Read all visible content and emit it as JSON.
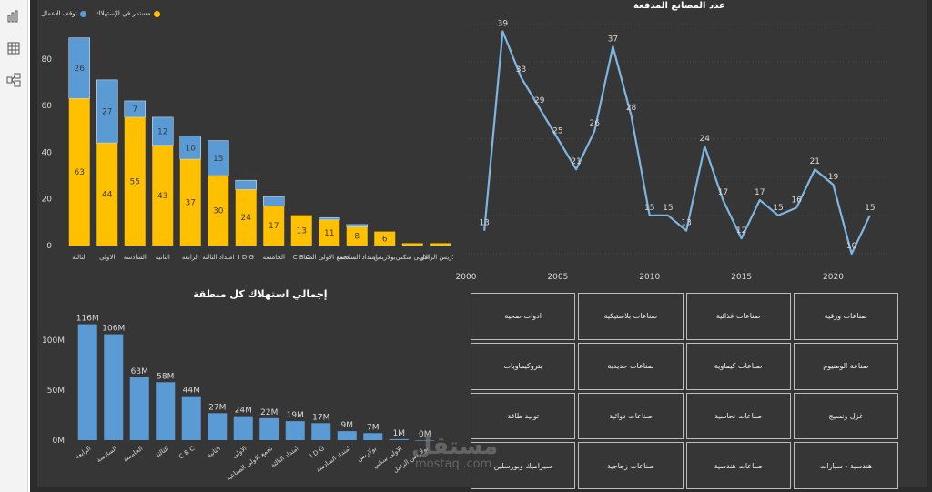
{
  "sidebar": {
    "items": [
      {
        "name": "report-view",
        "icon": "bar-chart-icon"
      },
      {
        "name": "data-view",
        "icon": "table-icon"
      },
      {
        "name": "model-view",
        "icon": "model-icon"
      }
    ]
  },
  "colors": {
    "background": "#363636",
    "stopped": "#5b9bd5",
    "continuing": "#ffc000",
    "line": "#7eb6e3",
    "text": "#d9d9d9"
  },
  "legend": {
    "stopped_label": "توقف الاعمال",
    "continuing_label": "مستمر في الإستهلاك"
  },
  "titles": {
    "line_chart": "عدد المصانع المدفعة",
    "region_chart": "إجمالي استهلاك كل منطقة"
  },
  "categories_grid": [
    "ادوات صحية",
    "صناعات بلاستيكية",
    "صناعات غذائية",
    "صناعات ورقية",
    "بتروكيماويات",
    "صناعات حديدية",
    "صناعات كيماوية",
    "صناعة الومنيوم",
    "توليد طاقة",
    "صناعات دوائية",
    "صناعات نحاسية",
    "غزل ونسيج",
    "سيراميك وبورسلين",
    "صناعات زجاجية",
    "صناعات هندسية",
    "هندسية - سيارات"
  ],
  "watermark": {
    "ar": "مستقل",
    "en": "mostaql.com"
  },
  "chart_data": [
    {
      "type": "bar",
      "stacked": true,
      "categories": [
        "الثالثة",
        "الاولى",
        "السادسة",
        "الثانية",
        "الرابعة",
        "امتداد الثالثة",
        "I D G",
        "الخامسة",
        "C B C",
        "تجمع الاولى الصنا...",
        "امتداد السادسة",
        "بولاريس",
        "الاولى سكني",
        "بولاريس الزامل"
      ],
      "series": [
        {
          "name": "مستمر في الإستهلاك",
          "values": [
            63,
            44,
            55,
            43,
            37,
            30,
            24,
            17,
            13,
            11,
            8,
            6,
            1,
            1
          ],
          "labels": [
            "63",
            "44",
            "55",
            "43",
            "37",
            "30",
            "24",
            "17",
            "13",
            "11",
            "8",
            "6",
            "",
            ""
          ]
        },
        {
          "name": "توقف الاعمال",
          "values": [
            26,
            27,
            7,
            12,
            10,
            15,
            4,
            4,
            0,
            1,
            1,
            0,
            0,
            0
          ],
          "labels": [
            "26",
            "27",
            "7",
            "12",
            "10",
            "15",
            "4",
            "4",
            "",
            "",
            "",
            "",
            "",
            ""
          ]
        }
      ],
      "yticks": [
        0,
        20,
        40,
        60,
        80
      ],
      "ylim": [
        0,
        92
      ],
      "legend": "top-left",
      "grid": false
    },
    {
      "type": "line",
      "title": "عدد المصانع المدفعة",
      "x": [
        2001,
        2002,
        2003,
        2004,
        2005,
        2006,
        2007,
        2008,
        2009,
        2010,
        2011,
        2012,
        2013,
        2014,
        2015,
        2016,
        2017,
        2018,
        2019,
        2020,
        2021,
        2022
      ],
      "y": [
        13,
        39,
        33,
        29,
        25,
        21,
        26,
        37,
        28,
        15,
        15,
        13,
        24,
        17,
        12,
        17,
        15,
        16,
        21,
        19,
        10,
        15
      ],
      "xticks": [
        2000,
        2005,
        2010,
        2015,
        2020
      ],
      "xlim": [
        2000,
        2023
      ],
      "ylim": [
        10,
        40
      ],
      "grid": true
    },
    {
      "type": "bar",
      "title": "إجمالي استهلاك كل منطقة",
      "categories": [
        "الرابعة",
        "السادسة",
        "الخامسة",
        "الثالثة",
        "C B C",
        "الثانية",
        "الاولى",
        "تجمع الاولى الصناعية",
        "امتداد الثالثة",
        "I D G",
        "امتداد السادسة",
        "بولاريس",
        "الاولى سكني",
        "بولاريس الزامل"
      ],
      "values": [
        116,
        106,
        63,
        58,
        44,
        27,
        24,
        22,
        19,
        17,
        9,
        7,
        1,
        0
      ],
      "labels": [
        "116M",
        "106M",
        "63M",
        "58M",
        "44M",
        "27M",
        "24M",
        "22M",
        "19M",
        "17M",
        "9M",
        "7M",
        "1M",
        "0M"
      ],
      "yticks": [
        0,
        50,
        100
      ],
      "ytick_labels": [
        "0M",
        "50M",
        "100M"
      ],
      "ylim": [
        0,
        122
      ],
      "grid": false
    }
  ]
}
